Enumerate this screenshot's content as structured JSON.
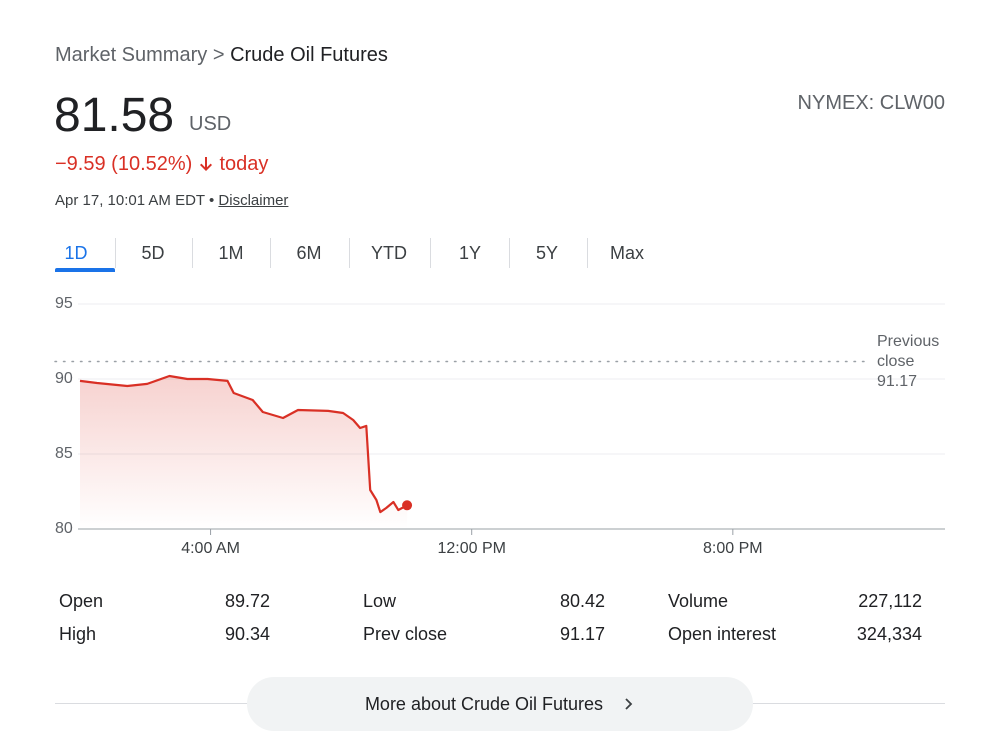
{
  "breadcrumb": {
    "parent": "Market Summary",
    "separator": ">",
    "current": "Crude Oil Futures"
  },
  "quote": {
    "price": "81.58",
    "currency": "USD",
    "change": "−9.59 (10.52%)",
    "change_suffix": "today",
    "timestamp": "Apr 17, 10:01 AM EDT",
    "disclaimer": "Disclaimer",
    "exchange": "NYMEX: CLW00"
  },
  "tabs": [
    "1D",
    "5D",
    "1M",
    "6M",
    "YTD",
    "1Y",
    "5Y",
    "Max"
  ],
  "chart_data": {
    "type": "line",
    "x": [
      0,
      0.52,
      1.45,
      2.06,
      2.74,
      3.29,
      3.91,
      4.52,
      4.71,
      5.29,
      5.6,
      6.22,
      6.68,
      7.6,
      8.06,
      8.37,
      8.58,
      8.77,
      8.89,
      9.08,
      9.2,
      9.38,
      9.6,
      9.75,
      10.02
    ],
    "series": [
      {
        "color": "#d93025",
        "values": [
          89.87,
          89.73,
          89.53,
          89.67,
          90.2,
          90.0,
          90.0,
          89.87,
          89.07,
          88.6,
          87.8,
          87.4,
          87.93,
          87.87,
          87.73,
          87.27,
          86.73,
          86.87,
          82.6,
          81.93,
          81.13,
          81.4,
          81.8,
          81.27,
          81.58
        ]
      }
    ],
    "xlim": [
      0,
      26.5
    ],
    "xticks": [
      {
        "value": 4,
        "label": "4:00 AM"
      },
      {
        "value": 12,
        "label": "12:00 PM"
      },
      {
        "value": 20,
        "label": "8:00 PM"
      }
    ],
    "ylim": [
      80,
      95
    ],
    "yticks": [
      80,
      85,
      90,
      95
    ],
    "grid": true,
    "previous_close": {
      "label": "Previous close",
      "value": 91.17
    }
  },
  "stats": [
    [
      {
        "label": "Open",
        "value": "89.72"
      },
      {
        "label": "High",
        "value": "90.34"
      }
    ],
    [
      {
        "label": "Low",
        "value": "80.42"
      },
      {
        "label": "Prev close",
        "value": "91.17"
      }
    ],
    [
      {
        "label": "Volume",
        "value": "227,112"
      },
      {
        "label": "Open interest",
        "value": "324,334"
      }
    ]
  ],
  "button": "More about Crude Oil Futures"
}
